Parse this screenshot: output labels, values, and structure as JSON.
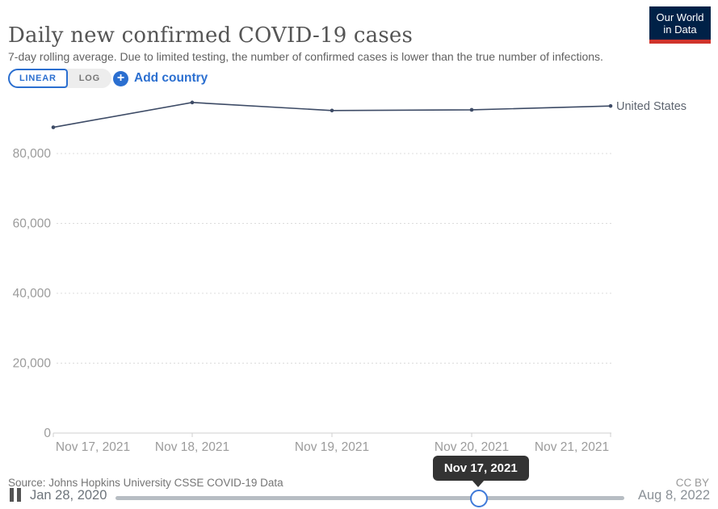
{
  "header": {
    "title": "Daily new confirmed COVID-19 cases",
    "subtitle": "7-day rolling average. Due to limited testing, the number of confirmed cases is lower than the true number of infections.",
    "logo": {
      "line1": "Our World",
      "line2": "in Data"
    }
  },
  "controls": {
    "scale_options": [
      {
        "label": "LINEAR",
        "selected": true
      },
      {
        "label": "LOG",
        "selected": false
      }
    ],
    "plus_glyph": "+",
    "add_country_label": "Add country"
  },
  "chart_data": {
    "type": "line",
    "title": "Daily new confirmed COVID-19 cases",
    "x": [
      "Nov 17, 2021",
      "Nov 18, 2021",
      "Nov 19, 2021",
      "Nov 20, 2021",
      "Nov 21, 2021"
    ],
    "series": [
      {
        "name": "United States",
        "color": "#3d4b66",
        "values": [
          87500,
          94600,
          92300,
          92500,
          93600
        ]
      }
    ],
    "ylim": [
      0,
      98000
    ],
    "yticks": [
      0,
      20000,
      40000,
      60000,
      80000
    ],
    "ytick_labels": [
      "0",
      "20,000",
      "40,000",
      "60,000",
      "80,000"
    ],
    "grid": "horizontal-dashed",
    "legend_position": "end-of-line"
  },
  "footer": {
    "source": "Source: Johns Hopkins University CSSE COVID-19 Data",
    "license": "CC BY"
  },
  "timeline": {
    "tooltip": "Nov 17, 2021",
    "start_label": "Jan 28, 2020",
    "end_label": "Aug 8, 2022",
    "progress_pct": 71.4
  },
  "colors": {
    "accent_blue": "#2b6fd0",
    "logo_bg": "#002147",
    "logo_bar": "#d0342c",
    "tooltip_bg": "#333333",
    "axis_text": "#9b9b9b",
    "gridline": "#dcdcdc",
    "axis_line": "#cfcfcf"
  }
}
